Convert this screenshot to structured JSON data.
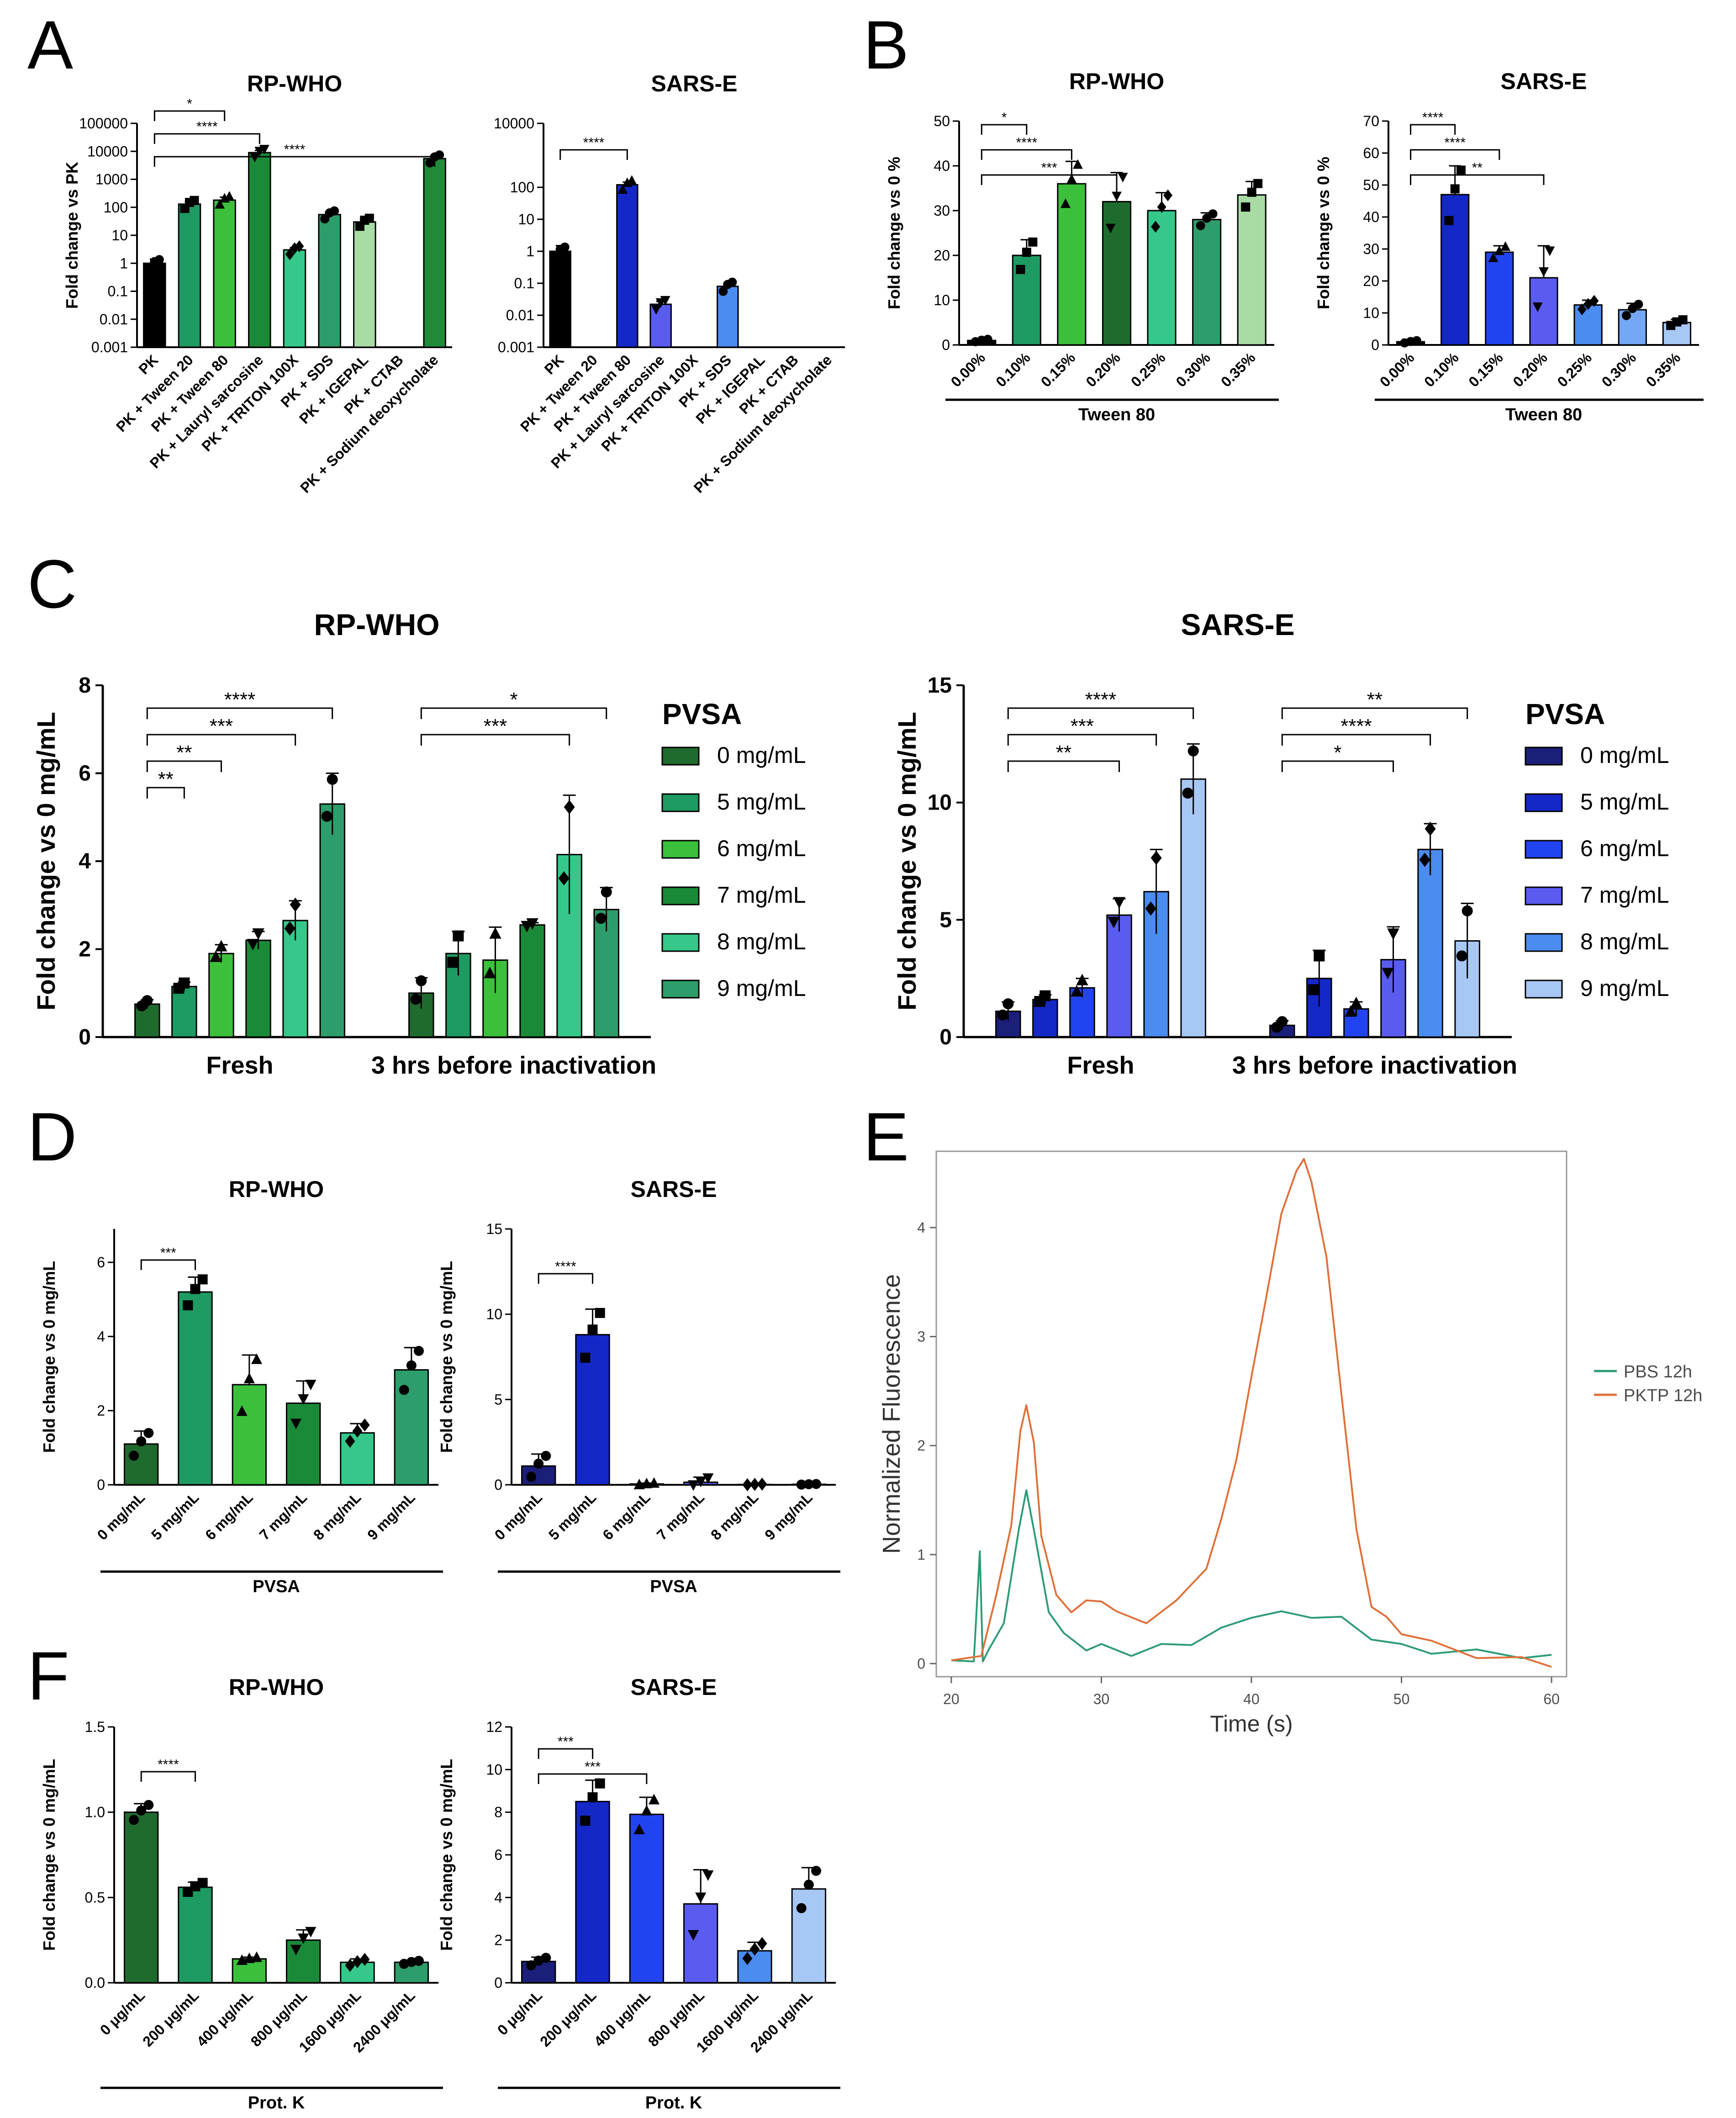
{
  "panels": {
    "A": "A",
    "B": "B",
    "C": "C",
    "D": "D",
    "E": "E",
    "F": "F"
  },
  "colors": {
    "black": "#000000",
    "g1": "#1f6b2e",
    "g2": "#1e9a63",
    "g3": "#3cc03c",
    "g4": "#1a8a38",
    "g5": "#35c88a",
    "g6": "#2d9e6b",
    "g7": "#a9dca5",
    "g8": "#228b3a",
    "b0": "#1b1f7a",
    "b1": "#1428c8",
    "b2": "#2244f0",
    "b3": "#5a5cf0",
    "b4": "#4a8cf0",
    "b5": "#74a8f4",
    "b6": "#a7c7f5",
    "pbs": "#2e9b74",
    "pktp": "#e0703a"
  },
  "chart_data": [
    {
      "id": "A1",
      "type": "bar",
      "title": "RP-WHO",
      "ylabel": "Fold change vs PK",
      "yscale": "log",
      "ylim": [
        0.001,
        100000
      ],
      "yticks": [
        "0.001",
        "0.01",
        "0.1",
        "1",
        "10",
        "100",
        "1000",
        "10000",
        "100000"
      ],
      "categories": [
        "PK",
        "PK + Tween 20",
        "PK + Tween 80",
        "PK + Lauryl sarcosine",
        "PK + TRITON 100X",
        "PK + SDS",
        "PK + IGEPAL",
        "PK + CTAB",
        "PK + Sodium deoxycholate"
      ],
      "values": [
        1.0,
        130,
        180,
        9000,
        3,
        55,
        30,
        null,
        5500
      ],
      "errors": [
        0.4,
        30,
        50,
        1800,
        0.6,
        12,
        8,
        null,
        1400
      ],
      "sig": [
        {
          "from": 0,
          "to": 2,
          "label": "*"
        },
        {
          "from": 0,
          "to": 3,
          "label": "****"
        },
        {
          "from": 0,
          "to": 8,
          "label": "****"
        }
      ]
    },
    {
      "id": "A2",
      "type": "bar",
      "title": "SARS-E",
      "ylabel": "",
      "yscale": "log",
      "ylim": [
        0.001,
        10000
      ],
      "yticks": [
        "0.001",
        "0.01",
        "0.1",
        "1",
        "10",
        "100",
        "10000"
      ],
      "categories": [
        "PK",
        "PK + Tween 20",
        "PK + Tween 80",
        "PK + Lauryl sarcosine",
        "PK + TRITON 100X",
        "PK + SDS",
        "PK + IGEPAL",
        "PK + CTAB",
        "PK + Sodium deoxycholate"
      ],
      "values": [
        1.0,
        null,
        120,
        0.022,
        null,
        0.08,
        null,
        null,
        null
      ],
      "errors": [
        0.5,
        null,
        25,
        0.005,
        null,
        0.02,
        null,
        null,
        null
      ],
      "sig": [
        {
          "from": 0,
          "to": 2,
          "label": "****"
        }
      ]
    },
    {
      "id": "B1",
      "type": "bar",
      "title": "RP-WHO",
      "ylabel": "Fold change vs 0 %",
      "xlabel": "Tween 80",
      "ylim": [
        0,
        50
      ],
      "yticks": [
        "0",
        "10",
        "20",
        "30",
        "40",
        "50"
      ],
      "categories": [
        "0.00%",
        "0.10%",
        "0.15%",
        "0.20%",
        "0.25%",
        "0.30%",
        "0.35%"
      ],
      "values": [
        1,
        20,
        36,
        32,
        30,
        28,
        33.5
      ],
      "errors": [
        0.3,
        3.5,
        5,
        6.5,
        4,
        1.5,
        3
      ],
      "sig": [
        {
          "from": 0,
          "to": 1,
          "label": "*"
        },
        {
          "from": 0,
          "to": 2,
          "label": "****"
        },
        {
          "from": 0,
          "to": 3,
          "label": "***"
        }
      ]
    },
    {
      "id": "B2",
      "type": "bar",
      "title": "SARS-E",
      "ylabel": "Fold change vs 0 %",
      "xlabel": "Tween 80",
      "ylim": [
        0,
        70
      ],
      "yticks": [
        "0",
        "10",
        "20",
        "30",
        "40",
        "50",
        "60",
        "70"
      ],
      "categories": [
        "0.00%",
        "0.10%",
        "0.15%",
        "0.20%",
        "0.25%",
        "0.30%",
        "0.35%"
      ],
      "values": [
        1,
        47,
        29,
        21,
        12.5,
        11,
        7
      ],
      "errors": [
        0.4,
        9,
        2,
        10,
        1.5,
        2,
        1
      ],
      "sig": [
        {
          "from": 0,
          "to": 1,
          "label": "****"
        },
        {
          "from": 0,
          "to": 2,
          "label": "****"
        },
        {
          "from": 0,
          "to": 3,
          "label": "**"
        }
      ]
    },
    {
      "id": "C1",
      "type": "bar",
      "title": "RP-WHO",
      "ylabel": "Fold change vs 0 mg/mL",
      "ylim": [
        0,
        8
      ],
      "yticks": [
        "0",
        "2",
        "4",
        "6",
        "8"
      ],
      "groups": [
        "Fresh",
        "3 hrs before inactivation"
      ],
      "legend_title": "PVSA",
      "series_names": [
        "0 mg/mL",
        "5 mg/mL",
        "6 mg/mL",
        "7 mg/mL",
        "8 mg/mL",
        "9 mg/mL"
      ],
      "values": [
        [
          0.75,
          1.15,
          1.9,
          2.2,
          2.65,
          5.3
        ],
        [
          1.0,
          1.9,
          1.75,
          2.55,
          4.15,
          2.9
        ]
      ],
      "errors": [
        [
          0.1,
          0.1,
          0.2,
          0.2,
          0.45,
          0.7
        ],
        [
          0.35,
          0.5,
          0.75,
          0.05,
          1.35,
          0.5
        ]
      ],
      "sig": [
        {
          "g": 0,
          "to": 1,
          "label": "**"
        },
        {
          "g": 0,
          "to": 2,
          "label": "**"
        },
        {
          "g": 0,
          "to": 4,
          "label": "***"
        },
        {
          "g": 0,
          "to": 5,
          "label": "****"
        },
        {
          "g": 1,
          "to": 4,
          "label": "***"
        },
        {
          "g": 1,
          "to": 5,
          "label": "*"
        }
      ]
    },
    {
      "id": "C2",
      "type": "bar",
      "title": "SARS-E",
      "ylabel": "Fold change vs 0 mg/mL",
      "ylim": [
        0,
        15
      ],
      "yticks": [
        "0",
        "5",
        "10",
        "15"
      ],
      "groups": [
        "Fresh",
        "3 hrs before inactivation"
      ],
      "legend_title": "PVSA",
      "series_names": [
        "0 mg/mL",
        "5 mg/mL",
        "6 mg/mL",
        "7 mg/mL",
        "8 mg/mL",
        "9 mg/mL"
      ],
      "values": [
        [
          1.1,
          1.6,
          2.1,
          5.2,
          6.2,
          11.0
        ],
        [
          0.5,
          2.5,
          1.2,
          3.3,
          8.0,
          4.1
        ]
      ],
      "errors": [
        [
          0.4,
          0.2,
          0.4,
          0.7,
          1.8,
          1.5
        ],
        [
          0.2,
          1.2,
          0.3,
          1.4,
          1.1,
          1.6
        ]
      ],
      "sig": [
        {
          "g": 0,
          "to": 3,
          "label": "**"
        },
        {
          "g": 0,
          "to": 4,
          "label": "***"
        },
        {
          "g": 0,
          "to": 5,
          "label": "****"
        },
        {
          "g": 1,
          "to": 3,
          "label": "*"
        },
        {
          "g": 1,
          "to": 4,
          "label": "****"
        },
        {
          "g": 1,
          "to": 5,
          "label": "**"
        }
      ]
    },
    {
      "id": "D1",
      "type": "bar",
      "title": "RP-WHO",
      "ylabel": "Fold change vs 0 mg/mL",
      "xlabel": "PVSA",
      "ylim": [
        0,
        6.9
      ],
      "yticks": [
        "0",
        "2",
        "4",
        "6"
      ],
      "categories": [
        "0 mg/mL",
        "5 mg/mL",
        "6 mg/mL",
        "7 mg/mL",
        "8 mg/mL",
        "9 mg/mL"
      ],
      "values": [
        1.1,
        5.2,
        2.7,
        2.2,
        1.4,
        3.1
      ],
      "errors": [
        0.35,
        0.4,
        0.8,
        0.6,
        0.25,
        0.6
      ],
      "sig": [
        {
          "from": 0,
          "to": 1,
          "label": "***"
        }
      ]
    },
    {
      "id": "D2",
      "type": "bar",
      "title": "SARS-E",
      "ylabel": "Fold change vs 0 mg/mL",
      "xlabel": "PVSA",
      "ylim": [
        0,
        15
      ],
      "yticks": [
        "0",
        "5",
        "10",
        "15"
      ],
      "categories": [
        "0 mg/mL",
        "5 mg/mL",
        "6 mg/mL",
        "7 mg/mL",
        "8 mg/mL",
        "9 mg/mL"
      ],
      "values": [
        1.1,
        8.8,
        0.05,
        0.15,
        0.02,
        0.03
      ],
      "errors": [
        0.7,
        1.5,
        0.05,
        0.3,
        0.02,
        0.02
      ],
      "sig": [
        {
          "from": 0,
          "to": 1,
          "label": "****"
        }
      ]
    },
    {
      "id": "E",
      "type": "line",
      "xlabel": "Time (s)",
      "ylabel": "Normalized Fluorescence",
      "xlim": [
        19,
        61
      ],
      "ylim": [
        -0.12,
        4.7
      ],
      "xticks": [
        "20",
        "30",
        "40",
        "50",
        "60"
      ],
      "yticks": [
        "0",
        "1",
        "2",
        "3",
        "4"
      ],
      "series": [
        {
          "name": "PBS 12h",
          "x": [
            20,
            21.5,
            21.9,
            22.1,
            22.5,
            23.5,
            24.5,
            25.0,
            25.5,
            26.5,
            27.5,
            29,
            30,
            32,
            34,
            36,
            38,
            40,
            42,
            44,
            46,
            48,
            50,
            52,
            55,
            58,
            60
          ],
          "y": [
            0,
            0.05,
            1.0,
            0.05,
            0.1,
            0.4,
            1.2,
            1.62,
            1.2,
            0.5,
            0.25,
            0.15,
            0.15,
            0.1,
            0.15,
            0.2,
            0.3,
            0.45,
            0.45,
            0.45,
            0.4,
            0.25,
            0.15,
            0.12,
            0.1,
            0.08,
            0.05
          ]
        },
        {
          "name": "PKTP 12h",
          "x": [
            20,
            22,
            23,
            24,
            24.6,
            25.0,
            25.5,
            26,
            27,
            28,
            29,
            30,
            31,
            33,
            35,
            37,
            38,
            39,
            40,
            41,
            42,
            43,
            43.5,
            44,
            45,
            46,
            47,
            48,
            49,
            50,
            52,
            55,
            58,
            60
          ],
          "y": [
            0,
            0.1,
            0.6,
            1.3,
            2.1,
            2.4,
            2.0,
            1.2,
            0.6,
            0.5,
            0.55,
            0.6,
            0.45,
            0.4,
            0.55,
            0.9,
            1.3,
            1.9,
            2.6,
            3.4,
            4.1,
            4.55,
            4.6,
            4.45,
            3.7,
            2.5,
            1.2,
            0.55,
            0.4,
            0.3,
            0.18,
            0.08,
            0.03,
            0
          ]
        }
      ]
    },
    {
      "id": "F1",
      "type": "bar",
      "title": "RP-WHO",
      "ylabel": "Fold change vs 0 mg/mL",
      "xlabel": "Prot. K",
      "ylim": [
        0,
        1.5
      ],
      "yticks": [
        "0.0",
        "0.5",
        "1.0",
        "1.5"
      ],
      "categories": [
        "0 μg/mL",
        "200 μg/mL",
        "400 μg/mL",
        "800 μg/mL",
        "1600 μg/mL",
        "2400 μg/mL"
      ],
      "values": [
        1.0,
        0.56,
        0.14,
        0.25,
        0.12,
        0.12
      ],
      "errors": [
        0.05,
        0.03,
        0.01,
        0.06,
        0.02,
        0.01
      ],
      "sig": [
        {
          "from": 0,
          "to": 1,
          "label": "****"
        }
      ]
    },
    {
      "id": "F2",
      "type": "bar",
      "title": "SARS-E",
      "ylabel": "Fold change vs 0 mg/mL",
      "xlabel": "Prot. K",
      "ylim": [
        0,
        12
      ],
      "yticks": [
        "0",
        "2",
        "4",
        "6",
        "8",
        "10",
        "12"
      ],
      "categories": [
        "0 μg/mL",
        "200 μg/mL",
        "400 μg/mL",
        "800 μg/mL",
        "1600 μg/mL",
        "2400 μg/mL"
      ],
      "values": [
        1.0,
        8.5,
        7.9,
        3.7,
        1.5,
        4.4
      ],
      "errors": [
        0.2,
        1.0,
        0.8,
        1.6,
        0.4,
        1.0
      ],
      "sig": [
        {
          "from": 0,
          "to": 1,
          "label": "***"
        },
        {
          "from": 0,
          "to": 2,
          "label": "***"
        }
      ]
    }
  ]
}
